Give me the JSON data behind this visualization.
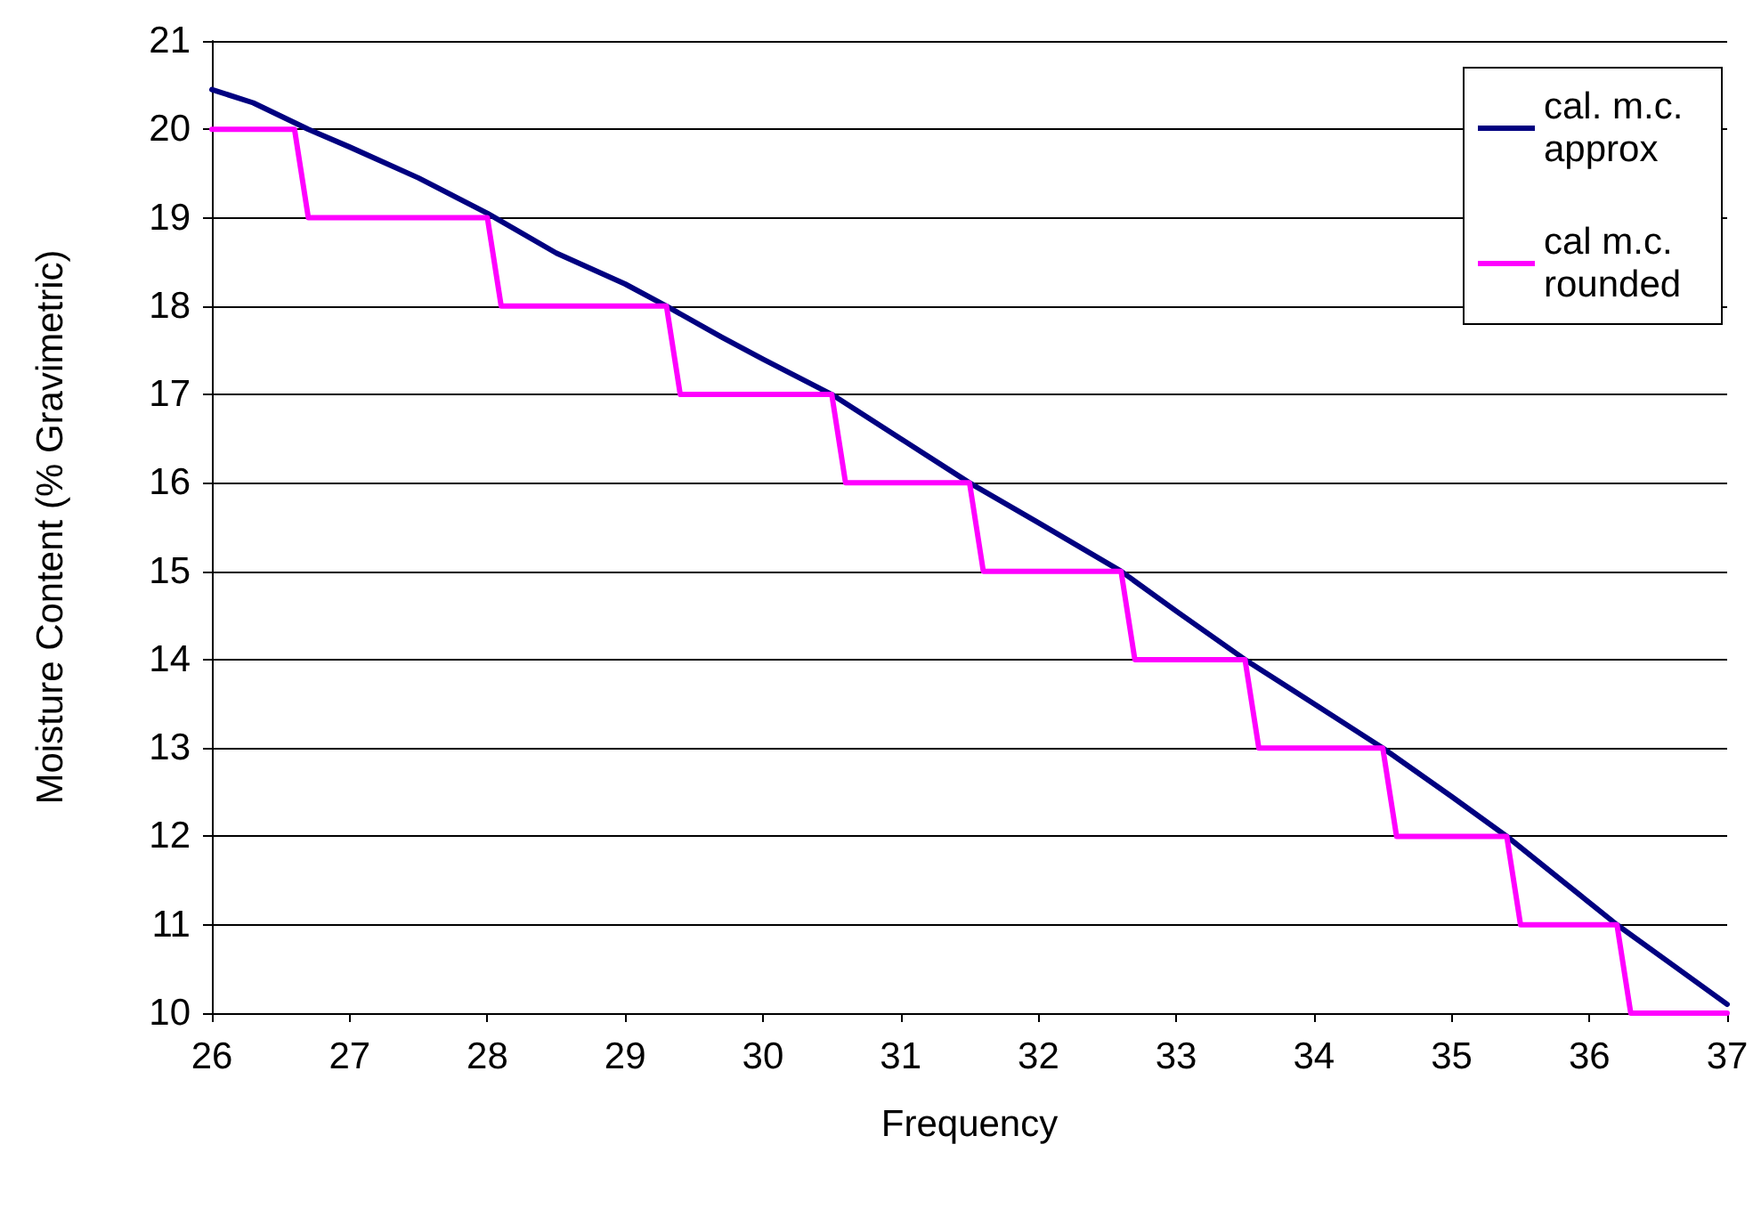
{
  "chart_data": {
    "type": "line",
    "xlabel": "Frequency",
    "ylabel": "Moisture Content (% Gravimetric)",
    "xlim": [
      26,
      37
    ],
    "xticks": [
      26,
      27,
      28,
      29,
      30,
      31,
      32,
      33,
      34,
      35,
      36,
      37
    ],
    "ylim": [
      10,
      21
    ],
    "yticks": [
      10,
      11,
      12,
      13,
      14,
      15,
      16,
      17,
      18,
      19,
      20,
      21
    ],
    "grid": "y",
    "legend": "top right",
    "marker": "none",
    "line_style": "solid",
    "series": [
      {
        "name": "cal. m.c. approx",
        "color": "#000080",
        "x": [
          26,
          26.3,
          26.7,
          27,
          27.5,
          28,
          28.5,
          29,
          29.3,
          29.7,
          30,
          30.5,
          31,
          31.5,
          32,
          32.6,
          33,
          33.5,
          34,
          34.5,
          35,
          35.4,
          35.8,
          36.2,
          36.6,
          37
        ],
        "values": [
          20.45,
          20.3,
          20.0,
          19.8,
          19.45,
          19.05,
          18.6,
          18.25,
          18.0,
          17.65,
          17.4,
          17.0,
          16.5,
          16.0,
          15.55,
          15.0,
          14.55,
          14.0,
          13.5,
          13.0,
          12.45,
          12.0,
          11.5,
          11.0,
          10.55,
          10.1
        ]
      },
      {
        "name": "cal m.c. rounded",
        "color": "#ff00ff",
        "x": [
          26,
          26.6,
          26.7,
          28.0,
          28.1,
          29.3,
          29.4,
          30.5,
          30.6,
          31.5,
          31.6,
          32.6,
          32.7,
          33.5,
          33.6,
          34.5,
          34.6,
          35.4,
          35.5,
          36.2,
          36.3,
          37
        ],
        "values": [
          20,
          20,
          19,
          19,
          18,
          18,
          17,
          17,
          16,
          16,
          15,
          15,
          14,
          14,
          13,
          13,
          12,
          12,
          11,
          11,
          10,
          10
        ]
      }
    ]
  }
}
